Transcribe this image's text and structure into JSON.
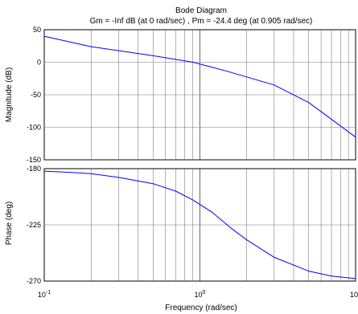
{
  "chart_data": {
    "type": "line",
    "title": "Bode Diagram",
    "subtitle": "Gm = -Inf dB (at 0 rad/sec) ,  Pm = -24.4 deg (at 0.905 rad/sec)",
    "xlabel": "Frequency  (rad/sec)",
    "x_scale": "log",
    "xlim": [
      0.1,
      10
    ],
    "x_ticks": [
      0.1,
      1,
      10
    ],
    "x_tick_labels": [
      {
        "base": "10",
        "exp": "-1"
      },
      {
        "base": "10",
        "exp": "0"
      },
      {
        "base": "10",
        "exp": "1"
      }
    ],
    "panels": [
      {
        "name": "magnitude",
        "ylabel": "Magnitude (dB)",
        "ylim": [
          -150,
          50
        ],
        "y_ticks": [
          50,
          0,
          -50,
          -100,
          -150
        ],
        "y_tick_labels": [
          "50",
          "0",
          "-50",
          "-100",
          "-150"
        ],
        "color": "#0000ff",
        "series": [
          {
            "x": [
              0.1,
              0.2,
              0.5,
              0.905,
              1.5,
              3,
              5,
              10
            ],
            "y": [
              40,
              24,
              10,
              0,
              -14,
              -35,
              -62,
              -115
            ]
          }
        ]
      },
      {
        "name": "phase",
        "ylabel": "Phase (deg)",
        "ylim": [
          -270,
          -180
        ],
        "y_ticks": [
          -180,
          -225,
          -270
        ],
        "y_tick_labels": [
          "-180",
          "-225",
          "-270"
        ],
        "color": "#0000ff",
        "series": [
          {
            "x": [
              0.1,
              0.15,
              0.2,
              0.3,
              0.5,
              0.7,
              0.9,
              1.2,
              1.6,
              2,
              3,
              5,
              7,
              10
            ],
            "y": [
              -182,
              -183,
              -184,
              -187,
              -192,
              -198,
              -205,
              -215,
              -228,
              -237,
              -251,
              -262,
              -266,
              -268
            ]
          }
        ]
      }
    ]
  }
}
